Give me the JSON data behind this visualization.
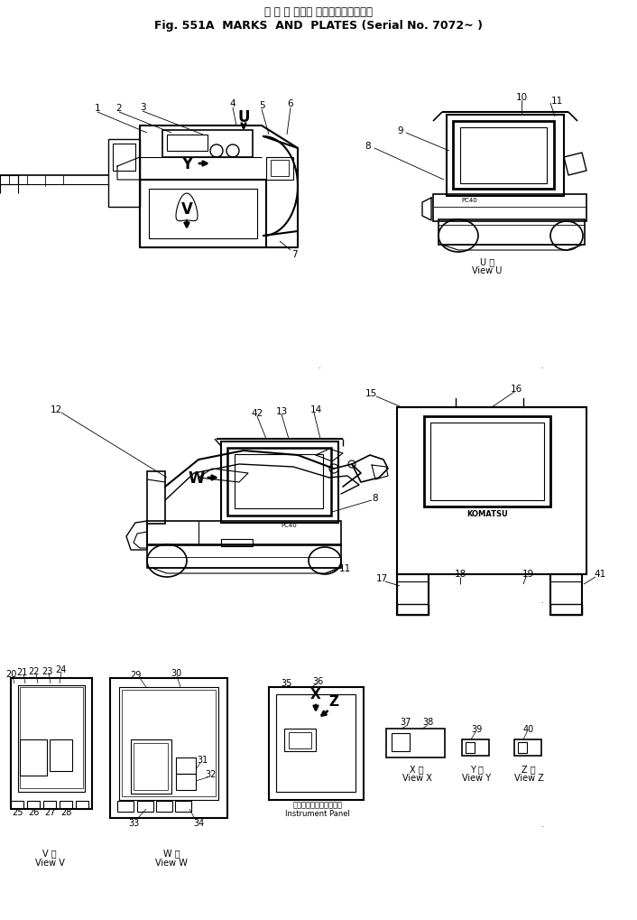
{
  "title_japanese": "マ ー ク および プレート（適用号機",
  "title_english": "Fig. 551A  MARKS  AND  PLATES (Serial No. 7072~ )",
  "bg_color": "#ffffff",
  "line_color": "#000000",
  "fig_width": 7.06,
  "fig_height": 10.2,
  "dpi": 100,
  "labels": {
    "view_u_jp": "U 機",
    "view_u_en": "View U",
    "view_v_jp": "V 機",
    "view_v_en": "View V",
    "view_w_jp": "W 機",
    "view_w_en": "View W",
    "view_x_jp": "X 機",
    "view_x_en": "View X",
    "view_y_jp": "Y 機",
    "view_y_en": "View Y",
    "view_z_jp": "Z 機",
    "view_z_en": "View Z",
    "instrument_panel_jp": "インスツルメントパネル",
    "instrument_panel_en": "Instrument Panel"
  }
}
